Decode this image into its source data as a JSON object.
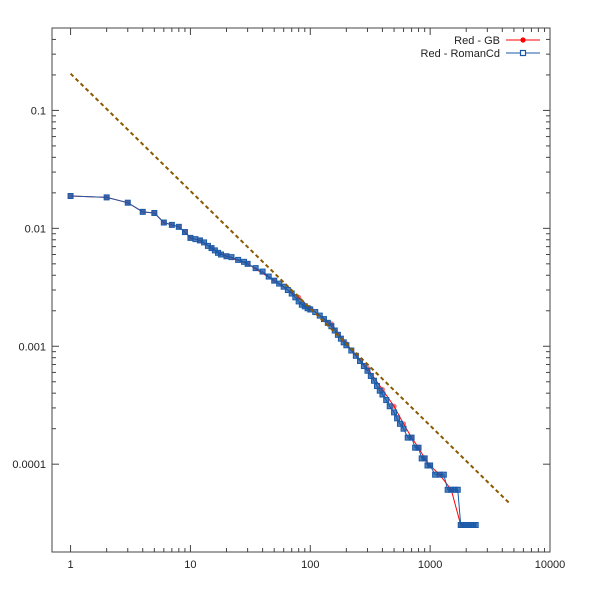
{
  "chart_data": {
    "type": "line",
    "xscale": "log",
    "yscale": "log",
    "xlim": [
      0.7,
      10000
    ],
    "ylim": [
      1.8e-05,
      0.5
    ],
    "grid": false,
    "legend_position": "top-right",
    "xticks": [
      {
        "value": 1,
        "label": "1"
      },
      {
        "value": 10,
        "label": "10"
      },
      {
        "value": 100,
        "label": "100"
      },
      {
        "value": 1000,
        "label": "1000"
      },
      {
        "value": 10000,
        "label": "10000"
      }
    ],
    "yticks": [
      {
        "value": 0.0001,
        "label": "0.0001"
      },
      {
        "value": 0.001,
        "label": "0.001"
      },
      {
        "value": 0.01,
        "label": "0.01"
      },
      {
        "value": 0.1,
        "label": "0.1"
      }
    ],
    "series": [
      {
        "name": "Red - GB",
        "color": "#ff0000",
        "marker": "filled-circle",
        "x": [
          1,
          2,
          3,
          4,
          5,
          6,
          7,
          8,
          9,
          10,
          12,
          15,
          20,
          30,
          50,
          80,
          100,
          150,
          200,
          300,
          400,
          500,
          600,
          700,
          800,
          900,
          1000,
          1200,
          1500,
          1800
        ],
        "y": [
          0.0188,
          0.0183,
          0.0165,
          0.0138,
          0.0135,
          0.0112,
          0.0107,
          0.0103,
          0.0093,
          0.0083,
          0.0079,
          0.0068,
          0.0058,
          0.005,
          0.0036,
          0.0026,
          0.0021,
          0.00155,
          0.00105,
          0.00065,
          0.00043,
          0.00031,
          0.00022,
          0.000168,
          0.000138,
          0.000112,
          9.75e-05,
          8.15e-05,
          6.07e-05,
          3.05e-05
        ]
      },
      {
        "name": "Red - RomanCd",
        "color": "#1a5aa8",
        "marker": "open-square",
        "x": [
          1,
          2,
          3,
          4,
          5,
          6,
          7,
          8,
          9,
          10,
          11,
          12,
          13,
          14,
          15,
          16,
          17,
          18,
          20,
          22,
          25,
          28,
          30,
          35,
          40,
          45,
          50,
          55,
          60,
          65,
          70,
          75,
          80,
          85,
          90,
          95,
          100,
          110,
          120,
          130,
          140,
          150,
          160,
          170,
          180,
          190,
          200,
          220,
          240,
          260,
          280,
          300,
          320,
          340,
          360,
          380,
          400,
          430,
          460,
          500,
          530,
          560,
          600,
          650,
          700,
          750,
          800,
          850,
          900,
          950,
          1000,
          1100,
          1200,
          1300,
          1400,
          1500,
          1600,
          1700,
          1800,
          1900,
          2000,
          2100,
          2200,
          2300,
          2400
        ],
        "y": [
          0.0188,
          0.0183,
          0.0165,
          0.0138,
          0.0135,
          0.0112,
          0.0107,
          0.0103,
          0.0093,
          0.0083,
          0.0081,
          0.0079,
          0.0076,
          0.0071,
          0.0068,
          0.0065,
          0.0062,
          0.006,
          0.0058,
          0.0057,
          0.0054,
          0.0052,
          0.005,
          0.0046,
          0.0043,
          0.0039,
          0.0036,
          0.0034,
          0.0032,
          0.003,
          0.0028,
          0.0026,
          0.0024,
          0.00225,
          0.00218,
          0.0021,
          0.00205,
          0.00195,
          0.00182,
          0.0017,
          0.00158,
          0.00148,
          0.00136,
          0.00125,
          0.00116,
          0.00108,
          0.00102,
          0.00092,
          0.00083,
          0.00075,
          0.00068,
          0.00062,
          0.00056,
          0.00051,
          0.00046,
          0.00042,
          0.00039,
          0.00035,
          0.00031,
          0.000275,
          0.000245,
          0.00022,
          0.0002,
          0.000168,
          0.000168,
          0.000138,
          0.000138,
          0.000112,
          0.000112,
          9.75e-05,
          9.75e-05,
          8.15e-05,
          8.15e-05,
          8.15e-05,
          6.07e-05,
          6.07e-05,
          6.07e-05,
          6.07e-05,
          3.05e-05,
          3.05e-05,
          3.05e-05,
          3.05e-05,
          3.05e-05,
          3.05e-05,
          3.05e-05
        ]
      },
      {
        "color": "#8b5a00",
        "style": "dashed",
        "x": [
          1,
          4600
        ],
        "y": [
          0.205,
          4.65e-05
        ]
      }
    ]
  }
}
